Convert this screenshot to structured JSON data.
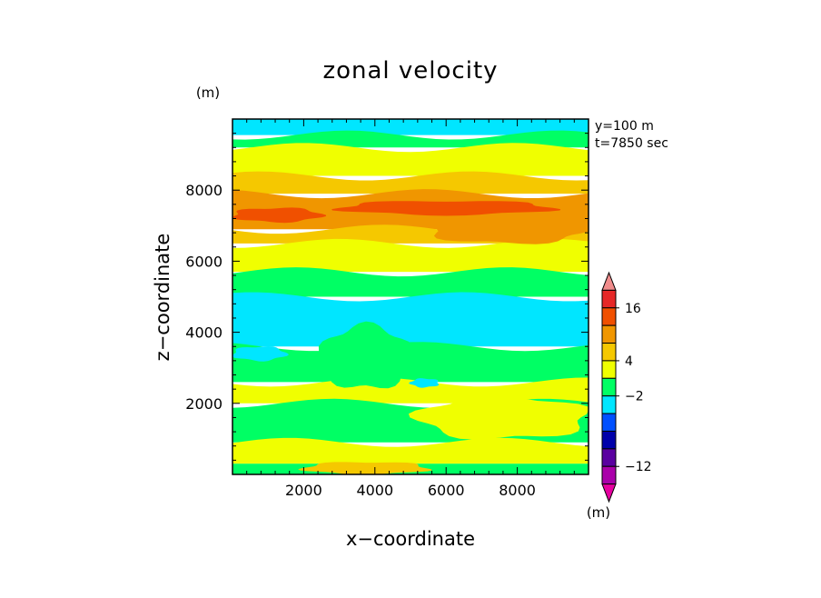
{
  "chart_data": {
    "type": "heatmap",
    "title": "zonal velocity",
    "xlabel": "x−coordinate",
    "ylabel": "z−coordinate",
    "x_unit": "(m)",
    "y_unit": "(m)",
    "xlim": [
      0,
      10000
    ],
    "ylim": [
      0,
      10000
    ],
    "x_ticks": [
      2000,
      4000,
      6000,
      8000
    ],
    "x_tick_labels": [
      "2000",
      "4000",
      "6000",
      "8000"
    ],
    "y_ticks": [
      2000,
      4000,
      6000,
      8000
    ],
    "y_tick_labels": [
      "2000",
      "4000",
      "6000",
      "8000"
    ],
    "annotations": [
      "y=100 m",
      "t=7850 sec"
    ],
    "colorbar": {
      "labels": [
        {
          "level": 16,
          "text": "16"
        },
        {
          "level": 4,
          "text": "4"
        },
        {
          "level": -2,
          "text": "−2"
        },
        {
          "level": -12,
          "text": "−12"
        }
      ],
      "unit": "(m)",
      "bins_top_to_bottom": [
        {
          "color": "#f08c8c"
        },
        {
          "color": "#e62828"
        },
        {
          "color": "#f05000"
        },
        {
          "color": "#f09600"
        },
        {
          "color": "#f5c800"
        },
        {
          "color": "#f0ff00"
        },
        {
          "color": "#00ff64"
        },
        {
          "color": "#00e6ff"
        },
        {
          "color": "#0050ff"
        },
        {
          "color": "#0000aa"
        },
        {
          "color": "#5a00a0"
        },
        {
          "color": "#aa00aa"
        },
        {
          "color": "#e600a0"
        }
      ]
    },
    "bands": [
      {
        "z_bottom": 9550,
        "z_top": 10000,
        "color": "#00e6ff"
      },
      {
        "z_bottom": 9200,
        "z_top": 9550,
        "color": "#00ff64"
      },
      {
        "z_bottom": 8400,
        "z_top": 9200,
        "color": "#f0ff00"
      },
      {
        "z_bottom": 7900,
        "z_top": 8400,
        "color": "#f5c800"
      },
      {
        "z_bottom": 6900,
        "z_top": 7900,
        "color": "#f09600"
      },
      {
        "z_bottom": 6500,
        "z_top": 6900,
        "color": "#f5c800"
      },
      {
        "z_bottom": 5700,
        "z_top": 6500,
        "color": "#f0ff00"
      },
      {
        "z_bottom": 5000,
        "z_top": 5700,
        "color": "#00ff64"
      },
      {
        "z_bottom": 3600,
        "z_top": 5000,
        "color": "#00e6ff"
      },
      {
        "z_bottom": 2600,
        "z_top": 3600,
        "color": "#00ff64"
      },
      {
        "z_bottom": 2000,
        "z_top": 2600,
        "color": "#f0ff00"
      },
      {
        "z_bottom": 900,
        "z_top": 2000,
        "color": "#00ff64"
      },
      {
        "z_bottom": 300,
        "z_top": 900,
        "color": "#f0ff00"
      },
      {
        "z_bottom": 0,
        "z_top": 300,
        "color": "#00ff64"
      }
    ],
    "patches": [
      {
        "x": [
          3000,
          9000
        ],
        "z": [
          7300,
          7700
        ],
        "color": "#f05000"
      },
      {
        "x": [
          0,
          2500
        ],
        "z": [
          7100,
          7500
        ],
        "color": "#f05000"
      },
      {
        "x": [
          5500,
          10000
        ],
        "z": [
          6500,
          7300
        ],
        "color": "#f09600"
      },
      {
        "x": [
          2500,
          5000
        ],
        "z": [
          2400,
          4200
        ],
        "color": "#00ff64"
      },
      {
        "x": [
          5200,
          10000
        ],
        "z": [
          1000,
          2200
        ],
        "color": "#f0ff00"
      },
      {
        "x": [
          5000,
          5800
        ],
        "z": [
          2450,
          2700
        ],
        "color": "#00e6ff"
      },
      {
        "x": [
          2000,
          5500
        ],
        "z": [
          0,
          350
        ],
        "color": "#f5c800"
      },
      {
        "x": [
          0,
          1500
        ],
        "z": [
          3200,
          3600
        ],
        "color": "#00e6ff"
      }
    ]
  }
}
